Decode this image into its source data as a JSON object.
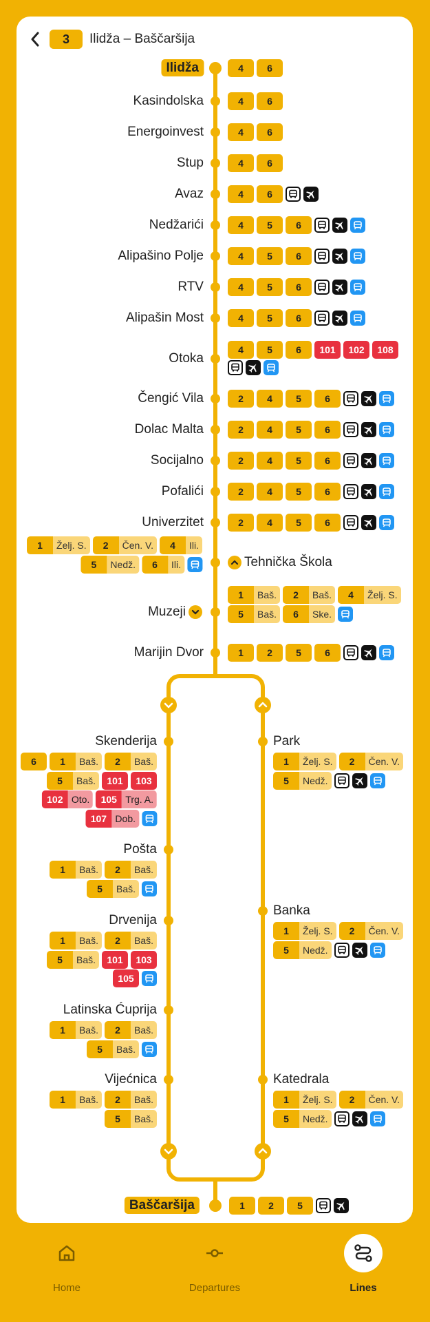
{
  "header": {
    "line_number": "3",
    "route_title": "Ilidža – Baščaršija"
  },
  "colors": {
    "accent": "#f1b203",
    "accent_light": "#fad679",
    "red": "#e8313f",
    "red_light": "#f29aa0",
    "tram_blue": "#2196f3"
  },
  "main_stops": [
    {
      "name": "Ilidža",
      "terminal": true,
      "lines": [
        {
          "n": "4"
        },
        {
          "n": "6"
        }
      ],
      "icons": []
    },
    {
      "name": "Kasindolska",
      "lines": [
        {
          "n": "4"
        },
        {
          "n": "6"
        }
      ],
      "icons": []
    },
    {
      "name": "Energoinvest",
      "lines": [
        {
          "n": "4"
        },
        {
          "n": "6"
        }
      ],
      "icons": []
    },
    {
      "name": "Stup",
      "lines": [
        {
          "n": "4"
        },
        {
          "n": "6"
        }
      ],
      "icons": []
    },
    {
      "name": "Avaz",
      "lines": [
        {
          "n": "4"
        },
        {
          "n": "6"
        }
      ],
      "icons": [
        "bus",
        "plane"
      ]
    },
    {
      "name": "Nedžarići",
      "lines": [
        {
          "n": "4"
        },
        {
          "n": "5"
        },
        {
          "n": "6"
        }
      ],
      "icons": [
        "bus",
        "plane",
        "tram"
      ]
    },
    {
      "name": "Alipašino Polje",
      "lines": [
        {
          "n": "4"
        },
        {
          "n": "5"
        },
        {
          "n": "6"
        }
      ],
      "icons": [
        "bus",
        "plane",
        "tram"
      ]
    },
    {
      "name": "RTV",
      "lines": [
        {
          "n": "4"
        },
        {
          "n": "5"
        },
        {
          "n": "6"
        }
      ],
      "icons": [
        "bus",
        "plane",
        "tram"
      ]
    },
    {
      "name": "Alipašin Most",
      "lines": [
        {
          "n": "4"
        },
        {
          "n": "5"
        },
        {
          "n": "6"
        }
      ],
      "icons": [
        "bus",
        "plane",
        "tram"
      ]
    },
    {
      "name": "Otoka",
      "lines": [
        {
          "n": "4"
        },
        {
          "n": "5"
        },
        {
          "n": "6"
        },
        {
          "n": "101",
          "red": true
        },
        {
          "n": "102",
          "red": true
        },
        {
          "n": "108",
          "red": true
        }
      ],
      "icons": [
        "bus",
        "plane",
        "tram"
      ]
    },
    {
      "name": "Čengić Vila",
      "lines": [
        {
          "n": "2"
        },
        {
          "n": "4"
        },
        {
          "n": "5"
        },
        {
          "n": "6"
        }
      ],
      "icons": [
        "bus",
        "plane",
        "tram"
      ]
    },
    {
      "name": "Dolac Malta",
      "lines": [
        {
          "n": "2"
        },
        {
          "n": "4"
        },
        {
          "n": "5"
        },
        {
          "n": "6"
        }
      ],
      "icons": [
        "bus",
        "plane",
        "tram"
      ]
    },
    {
      "name": "Socijalno",
      "lines": [
        {
          "n": "2"
        },
        {
          "n": "4"
        },
        {
          "n": "5"
        },
        {
          "n": "6"
        }
      ],
      "icons": [
        "bus",
        "plane",
        "tram"
      ]
    },
    {
      "name": "Pofalići",
      "lines": [
        {
          "n": "2"
        },
        {
          "n": "4"
        },
        {
          "n": "5"
        },
        {
          "n": "6"
        }
      ],
      "icons": [
        "bus",
        "plane",
        "tram"
      ]
    },
    {
      "name": "Univerzitet",
      "lines": [
        {
          "n": "2"
        },
        {
          "n": "4"
        },
        {
          "n": "5"
        },
        {
          "n": "6"
        }
      ],
      "icons": [
        "bus",
        "plane",
        "tram"
      ]
    },
    {
      "name": "Tehnička Škola",
      "lines": [
        {
          "n": "1",
          "d": "Želj. S."
        },
        {
          "n": "2",
          "d": "Čen. V."
        },
        {
          "n": "4",
          "d": "Ili."
        },
        {
          "n": "5",
          "d": "Nedž."
        },
        {
          "n": "6",
          "d": "Ili."
        }
      ],
      "icons": [
        "tram"
      ]
    },
    {
      "name": "Muzeji",
      "lines": [
        {
          "n": "1",
          "d": "Baš."
        },
        {
          "n": "2",
          "d": "Baš."
        },
        {
          "n": "4",
          "d": "Želj. S."
        },
        {
          "n": "5",
          "d": "Baš."
        },
        {
          "n": "6",
          "d": "Ske."
        }
      ],
      "icons": [
        "tram"
      ]
    },
    {
      "name": "Marijin Dvor",
      "lines": [
        {
          "n": "1"
        },
        {
          "n": "2"
        },
        {
          "n": "5"
        },
        {
          "n": "6"
        }
      ],
      "icons": [
        "bus",
        "plane",
        "tram"
      ]
    },
    {
      "name": "Baščaršija",
      "terminal": true,
      "lines": [
        {
          "n": "1"
        },
        {
          "n": "2"
        },
        {
          "n": "5"
        }
      ],
      "icons": [
        "bus",
        "plane"
      ]
    }
  ],
  "left_loop": [
    {
      "name": "Skenderija",
      "rows": [
        [
          {
            "n": "6"
          },
          {
            "n": "1",
            "d": "Baš."
          },
          {
            "n": "2",
            "d": "Baš."
          }
        ],
        [
          {
            "n": "5",
            "d": "Baš."
          },
          {
            "n": "101",
            "red": true
          },
          {
            "n": "103",
            "red": true
          }
        ],
        [
          {
            "n": "102",
            "d": "Oto.",
            "red": true
          },
          {
            "n": "105",
            "d": "Trg. A.",
            "red": true
          }
        ],
        [
          {
            "n": "107",
            "d": "Dob.",
            "red": true
          },
          {
            "icon": "tram"
          }
        ]
      ]
    },
    {
      "name": "Pošta",
      "rows": [
        [
          {
            "n": "1",
            "d": "Baš."
          },
          {
            "n": "2",
            "d": "Baš."
          }
        ],
        [
          {
            "n": "5",
            "d": "Baš."
          },
          {
            "icon": "tram"
          }
        ]
      ]
    },
    {
      "name": "Drvenija",
      "rows": [
        [
          {
            "n": "1",
            "d": "Baš."
          },
          {
            "n": "2",
            "d": "Baš."
          }
        ],
        [
          {
            "n": "5",
            "d": "Baš."
          },
          {
            "n": "101",
            "red": true
          },
          {
            "n": "103",
            "red": true
          }
        ],
        [
          {
            "n": "105",
            "red": true
          },
          {
            "icon": "tram"
          }
        ]
      ]
    },
    {
      "name": "Latinska Ćuprija",
      "rows": [
        [
          {
            "n": "1",
            "d": "Baš."
          },
          {
            "n": "2",
            "d": "Baš."
          }
        ],
        [
          {
            "n": "5",
            "d": "Baš."
          },
          {
            "icon": "tram"
          }
        ]
      ]
    },
    {
      "name": "Vijećnica",
      "rows": [
        [
          {
            "n": "1",
            "d": "Baš."
          },
          {
            "n": "2",
            "d": "Baš."
          }
        ],
        [
          {
            "n": "5",
            "d": "Baš."
          }
        ]
      ]
    }
  ],
  "right_loop": [
    {
      "name": "Park",
      "rows": [
        [
          {
            "n": "1",
            "d": "Želj. S."
          },
          {
            "n": "2",
            "d": "Čen. V."
          }
        ],
        [
          {
            "n": "5",
            "d": "Nedž."
          },
          {
            "icon": "bus"
          },
          {
            "icon": "plane"
          },
          {
            "icon": "tram"
          }
        ]
      ]
    },
    {
      "name": "Banka",
      "rows": [
        [
          {
            "n": "1",
            "d": "Želj. S."
          },
          {
            "n": "2",
            "d": "Čen. V."
          }
        ],
        [
          {
            "n": "5",
            "d": "Nedž."
          },
          {
            "icon": "bus"
          },
          {
            "icon": "plane"
          },
          {
            "icon": "tram"
          }
        ]
      ]
    },
    {
      "name": "Katedrala",
      "rows": [
        [
          {
            "n": "1",
            "d": "Želj. S."
          },
          {
            "n": "2",
            "d": "Čen. V."
          }
        ],
        [
          {
            "n": "5",
            "d": "Nedž."
          },
          {
            "icon": "bus"
          },
          {
            "icon": "plane"
          },
          {
            "icon": "tram"
          }
        ]
      ]
    }
  ],
  "nav": {
    "home": "Home",
    "departures": "Departures",
    "lines": "Lines"
  }
}
